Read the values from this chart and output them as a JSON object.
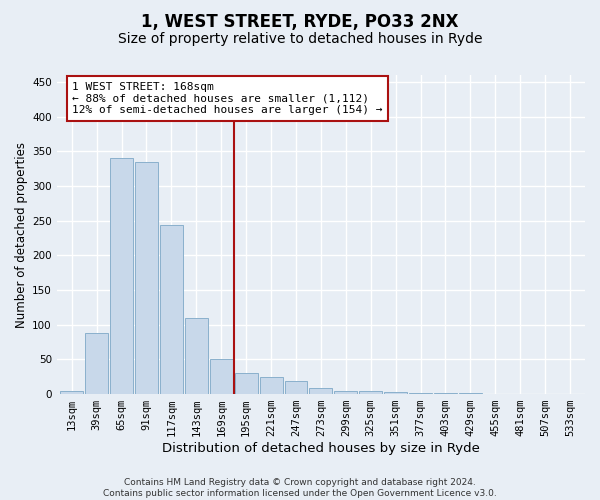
{
  "title": "1, WEST STREET, RYDE, PO33 2NX",
  "subtitle": "Size of property relative to detached houses in Ryde",
  "xlabel": "Distribution of detached houses by size in Ryde",
  "ylabel": "Number of detached properties",
  "categories": [
    "13sqm",
    "39sqm",
    "65sqm",
    "91sqm",
    "117sqm",
    "143sqm",
    "169sqm",
    "195sqm",
    "221sqm",
    "247sqm",
    "273sqm",
    "299sqm",
    "325sqm",
    "351sqm",
    "377sqm",
    "403sqm",
    "429sqm",
    "455sqm",
    "481sqm",
    "507sqm",
    "533sqm"
  ],
  "values": [
    5,
    88,
    341,
    335,
    244,
    110,
    50,
    31,
    25,
    19,
    9,
    5,
    4,
    3,
    2,
    1,
    1,
    0,
    0,
    0,
    0
  ],
  "bar_color": "#c8d8ea",
  "bar_edge_color": "#8ab0cc",
  "vline_x_index": 6,
  "vline_color": "#aa1111",
  "annotation_text": "1 WEST STREET: 168sqm\n← 88% of detached houses are smaller (1,112)\n12% of semi-detached houses are larger (154) →",
  "annotation_box_color": "#ffffff",
  "annotation_box_edge_color": "#aa1111",
  "ylim": [
    0,
    460
  ],
  "yticks": [
    0,
    50,
    100,
    150,
    200,
    250,
    300,
    350,
    400,
    450
  ],
  "background_color": "#e8eef5",
  "grid_color": "#ffffff",
  "footer": "Contains HM Land Registry data © Crown copyright and database right 2024.\nContains public sector information licensed under the Open Government Licence v3.0.",
  "title_fontsize": 12,
  "subtitle_fontsize": 10,
  "xlabel_fontsize": 9.5,
  "ylabel_fontsize": 8.5,
  "tick_fontsize": 7.5,
  "annotation_fontsize": 8,
  "footer_fontsize": 6.5
}
